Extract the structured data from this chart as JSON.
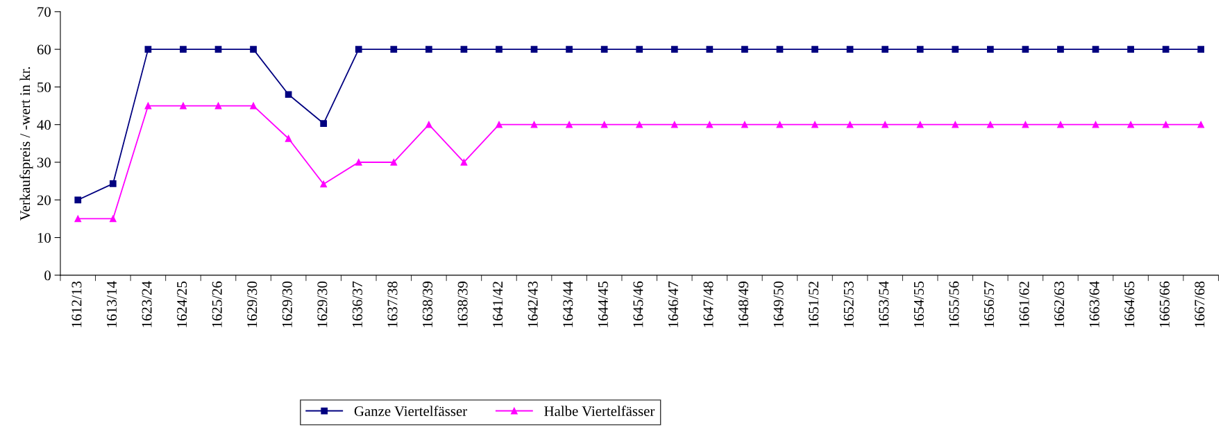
{
  "chart_data": {
    "type": "line",
    "ylabel": "Verkaufspreis / -wert in kr.",
    "categories": [
      "1612/13",
      "1613/14",
      "1623/24",
      "1624/25",
      "1625/26",
      "1629/30",
      "1629/30",
      "1629/30",
      "1636/37",
      "1637/38",
      "1638/39",
      "1638/39",
      "1641/42",
      "1642/43",
      "1643/44",
      "1644/45",
      "1645/46",
      "1646/47",
      "1647/48",
      "1648/49",
      "1649/50",
      "1651/52",
      "1652/53",
      "1653/54",
      "1654/55",
      "1655/56",
      "1656/57",
      "1661/62",
      "1662/63",
      "1663/64",
      "1664/65",
      "1665/66",
      "1667/68"
    ],
    "series": [
      {
        "name": "Ganze Viertelfässer",
        "color": "#000080",
        "marker": "square",
        "values": [
          20,
          24.3,
          60,
          60,
          60,
          60,
          48,
          40.3,
          60,
          60,
          60,
          60,
          60,
          60,
          60,
          60,
          60,
          60,
          60,
          60,
          60,
          60,
          60,
          60,
          60,
          60,
          60,
          60,
          60,
          60,
          60,
          60,
          60
        ]
      },
      {
        "name": "Halbe Viertelfässer",
        "color": "#ff00ff",
        "marker": "triangle",
        "values": [
          15,
          15,
          45,
          45,
          45,
          45,
          36.3,
          24.2,
          30,
          30,
          40,
          30,
          40,
          40,
          40,
          40,
          40,
          40,
          40,
          40,
          40,
          40,
          40,
          40,
          40,
          40,
          40,
          40,
          40,
          40,
          40,
          40,
          40
        ]
      }
    ],
    "ylim": [
      0,
      70
    ],
    "yticks": [
      0,
      10,
      20,
      30,
      40,
      50,
      60,
      70
    ],
    "grid": false,
    "legend": "bottom",
    "line_style": "solid"
  }
}
